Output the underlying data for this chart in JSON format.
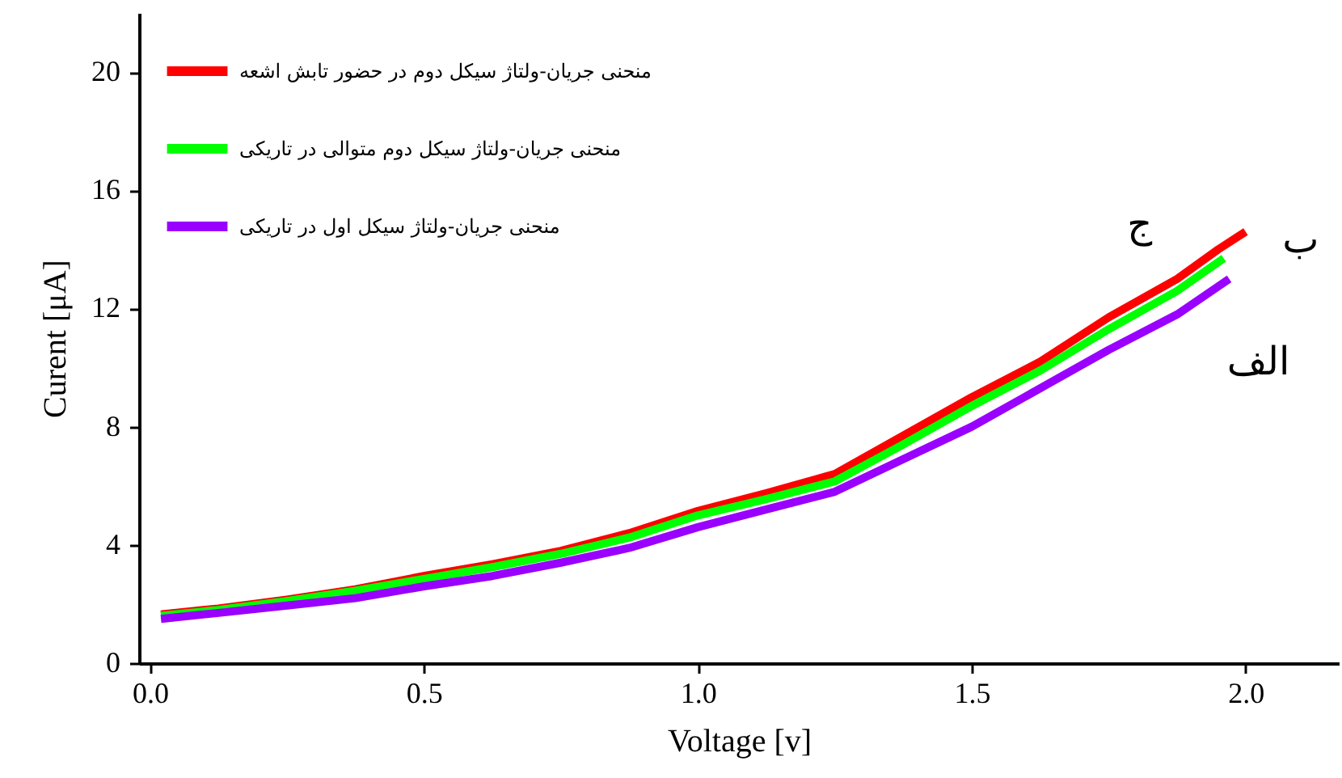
{
  "chart_data": {
    "type": "line",
    "xlabel": "Voltage [v]",
    "ylabel": "Curent [μA]",
    "xlim": [
      -0.02,
      2.17
    ],
    "xticks": [
      {
        "value": 0,
        "label": "0.0"
      },
      0.5,
      {
        "value": 1,
        "label": "1.0"
      },
      1.5,
      {
        "value": 2,
        "label": "2.0"
      }
    ],
    "ylim": [
      0,
      22
    ],
    "yticks": [
      0,
      4,
      8,
      12,
      16,
      20
    ],
    "grid": false,
    "legend": "top left",
    "line_style": "solid",
    "series": [
      {
        "name": "منحنی جریان-ولتاژ سیکل دوم در حضور تابش اشعه",
        "color": "#ff0000",
        "x": [
          0.02,
          0.125,
          0.25,
          0.375,
          0.5,
          0.625,
          0.75,
          0.875,
          1.0,
          1.125,
          1.25,
          1.375,
          1.5,
          1.625,
          1.75,
          1.875,
          1.95,
          2.0
        ],
        "values": [
          1.65,
          1.85,
          2.15,
          2.5,
          2.95,
          3.35,
          3.8,
          4.4,
          5.15,
          5.75,
          6.4,
          7.7,
          9.0,
          10.2,
          11.7,
          13.0,
          14.0,
          14.6
        ]
      },
      {
        "name": "منحنی جریان-ولتاژ سیکل دوم متوالی در تاریکی",
        "color": "#00ff00",
        "x": [
          0.02,
          0.125,
          0.25,
          0.375,
          0.5,
          0.625,
          0.75,
          0.875,
          1.0,
          1.125,
          1.25,
          1.375,
          1.5,
          1.625,
          1.75,
          1.875,
          1.96
        ],
        "values": [
          1.6,
          1.8,
          2.1,
          2.45,
          2.85,
          3.25,
          3.7,
          4.25,
          5.0,
          5.55,
          6.15,
          7.4,
          8.7,
          9.9,
          11.3,
          12.6,
          13.7
        ]
      },
      {
        "name": "منحنی جریان-ولتاژ سیکل اول در تاریکی",
        "color": "#9900ff",
        "x": [
          0.02,
          0.125,
          0.25,
          0.375,
          0.5,
          0.625,
          0.75,
          0.875,
          1.0,
          1.125,
          1.25,
          1.375,
          1.5,
          1.625,
          1.75,
          1.875,
          1.97
        ],
        "values": [
          1.5,
          1.7,
          1.95,
          2.2,
          2.6,
          2.95,
          3.4,
          3.9,
          4.6,
          5.2,
          5.8,
          6.9,
          8.0,
          9.3,
          10.6,
          11.8,
          13.0
        ]
      }
    ],
    "annotations": [
      "ب",
      "ج",
      "الف"
    ]
  }
}
